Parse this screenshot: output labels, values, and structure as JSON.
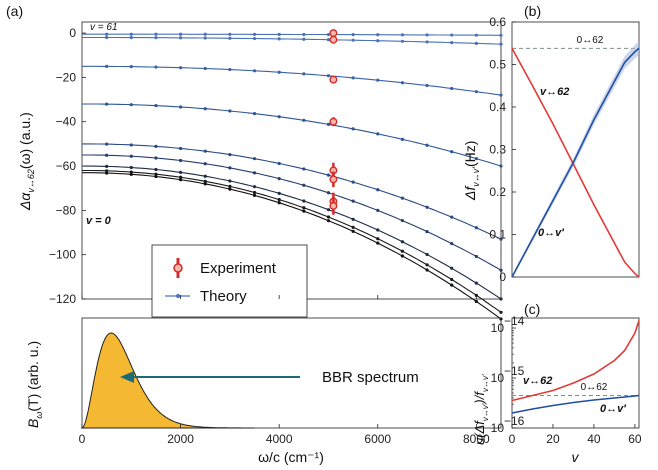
{
  "figure": {
    "panels": [
      {
        "id": "a",
        "label": "(a)"
      },
      {
        "id": "b",
        "label": "(b)"
      },
      {
        "id": "c",
        "label": "(c)"
      }
    ],
    "shared_xlabel": "ω/c (cm⁻¹)"
  },
  "chart_data": [
    {
      "panel": "(a) top",
      "type": "line",
      "ylabel": "Δα_{v↔62}(ω) (a.u.)",
      "xlim": [
        0,
        8500
      ],
      "ylim": [
        -120,
        5
      ],
      "yticks": [
        0,
        -20,
        -40,
        -60,
        -80,
        -100,
        -120
      ],
      "xticks": [
        0,
        2000,
        4000,
        6000,
        8000
      ],
      "annotations": [
        "v = 61",
        "v = 0"
      ],
      "legend": {
        "placement": "bottom-center",
        "entries": [
          "Experiment",
          "Theory"
        ]
      },
      "theory_x": [
        0,
        500,
        1000,
        1500,
        2000,
        2500,
        3000,
        3500,
        4000,
        4500,
        5000,
        5500,
        6000,
        6500,
        7000,
        7500,
        8000,
        8500
      ],
      "series": [
        {
          "curve": "v=61",
          "color": "#4a72b8",
          "y0": -0.5,
          "k": 0.5
        },
        {
          "curve": 2,
          "color": "#4a72b8",
          "y0": -2.0,
          "k": 3
        },
        {
          "curve": 3,
          "color": "#3a62a8",
          "y0": -15,
          "k": 13
        },
        {
          "curve": 4,
          "color": "#2e5596",
          "y0": -32,
          "k": 28
        },
        {
          "curve": 5,
          "color": "#2a4a85",
          "y0": -50,
          "k": 43
        },
        {
          "curve": 6,
          "color": "#263e6e",
          "y0": -55,
          "k": 52
        },
        {
          "curve": 7,
          "color": "#1e2c48",
          "y0": -60,
          "k": 60
        },
        {
          "curve": 8,
          "color": "#1a1a1a",
          "y0": -62,
          "k": 64
        },
        {
          "curve": "v=0",
          "color": "#111111",
          "y0": -63,
          "k": 66
        }
      ],
      "experiment": {
        "x": 5100,
        "points": [
          {
            "y": 0,
            "err": 1.0
          },
          {
            "y": -3,
            "err": 1.0
          },
          {
            "y": -21,
            "err": 1.5
          },
          {
            "y": -40,
            "err": 2.0
          },
          {
            "y": -62,
            "err": 3.5
          },
          {
            "y": -66,
            "err": 3.5
          },
          {
            "y": -76,
            "err": 4.0
          },
          {
            "y": -78,
            "err": 4.0
          }
        ]
      },
      "text_label": "BBR spectrum"
    },
    {
      "panel": "(a) bottom",
      "type": "area",
      "ylabel": "B_ω(T) (arb. u.)",
      "xlabel": "ω/c (cm⁻¹)",
      "xlim": [
        0,
        8500
      ],
      "xticks": [
        0,
        2000,
        4000,
        6000,
        8000
      ],
      "peak_x": 600,
      "fill_color": "#f4b833",
      "arrow_label": "BBR spectrum"
    },
    {
      "panel": "(b)",
      "type": "line",
      "ylabel": "Δf_{v↔v′} (Hz)",
      "xlim": [
        0,
        62
      ],
      "ylim": [
        0,
        0.6
      ],
      "yticks": [
        0,
        0.1,
        0.2,
        0.3,
        0.4,
        0.5,
        0.6
      ],
      "reference": {
        "label": "0↔62",
        "y": 0.538
      },
      "series": [
        {
          "name": "v↔62",
          "color": "#e43a36",
          "x": [
            0,
            10,
            20,
            30,
            40,
            50,
            55,
            60,
            62
          ],
          "y": [
            0.538,
            0.45,
            0.36,
            0.265,
            0.17,
            0.08,
            0.035,
            0.008,
            0
          ]
        },
        {
          "name": "0↔v′",
          "color": "#1f4fa3",
          "x": [
            0,
            10,
            20,
            30,
            40,
            50,
            55,
            60,
            62
          ],
          "y": [
            0,
            0.09,
            0.18,
            0.27,
            0.37,
            0.46,
            0.505,
            0.53,
            0.538
          ]
        }
      ]
    },
    {
      "panel": "(c)",
      "type": "line",
      "ylabel": "u(Δf_{v↔v′})/f_{v↔v′}",
      "xlabel": "v",
      "xlim": [
        0,
        62
      ],
      "ylim_log10": [
        -16,
        -13.8
      ],
      "xticks": [
        0,
        20,
        40,
        60
      ],
      "yticks_exp": [
        -16,
        -15,
        -14
      ],
      "reference": {
        "label": "0↔62",
        "log10y": -15.35
      },
      "series": [
        {
          "name": "v↔62",
          "color": "#e43a36",
          "x": [
            0,
            10,
            20,
            30,
            40,
            50,
            55,
            60,
            62
          ],
          "log10y": [
            -15.45,
            -15.35,
            -15.25,
            -15.1,
            -14.92,
            -14.65,
            -14.45,
            -14.1,
            -13.85
          ]
        },
        {
          "name": "0↔v′",
          "color": "#1f4fa3",
          "x": [
            0,
            10,
            20,
            30,
            40,
            50,
            55,
            60,
            62
          ],
          "log10y": [
            -15.7,
            -15.62,
            -15.55,
            -15.49,
            -15.44,
            -15.4,
            -15.38,
            -15.36,
            -15.35
          ]
        }
      ]
    }
  ],
  "text": {
    "panel_a": "(a)",
    "panel_b": "(b)",
    "panel_c": "(c)",
    "a_ylabel": "Δα",
    "a_ylabel_sub": "v↔62",
    "a_ylabel_rest": "(ω) (a.u.)",
    "a2_ylabel_main": "B",
    "a2_ylabel_sub": "ω",
    "a2_ylabel_rest": "(T) (arb. u.)",
    "xlabel_a": "ω/c (cm⁻¹)",
    "legend_experiment": "Experiment",
    "legend_theory": "Theory",
    "ann_v61": "v = 61",
    "ann_v0": "v = 0",
    "bbr_label": "BBR spectrum",
    "b_ylabel_main": "Δf",
    "b_ylabel_sub": "v↔v′",
    "b_ylabel_rest": "(Hz)",
    "b_ref": "0↔62",
    "b_red": "v↔62",
    "b_blue": "0↔v′",
    "c_ylabel_main": "u(Δf",
    "c_ylabel_sub1": "v↔v′",
    "c_ylabel_mid": ")/f",
    "c_ylabel_sub2": "v↔v′",
    "c_ref": "0↔62",
    "c_red": "v↔62",
    "c_blue": "0↔v′",
    "c_xlabel": "v"
  }
}
